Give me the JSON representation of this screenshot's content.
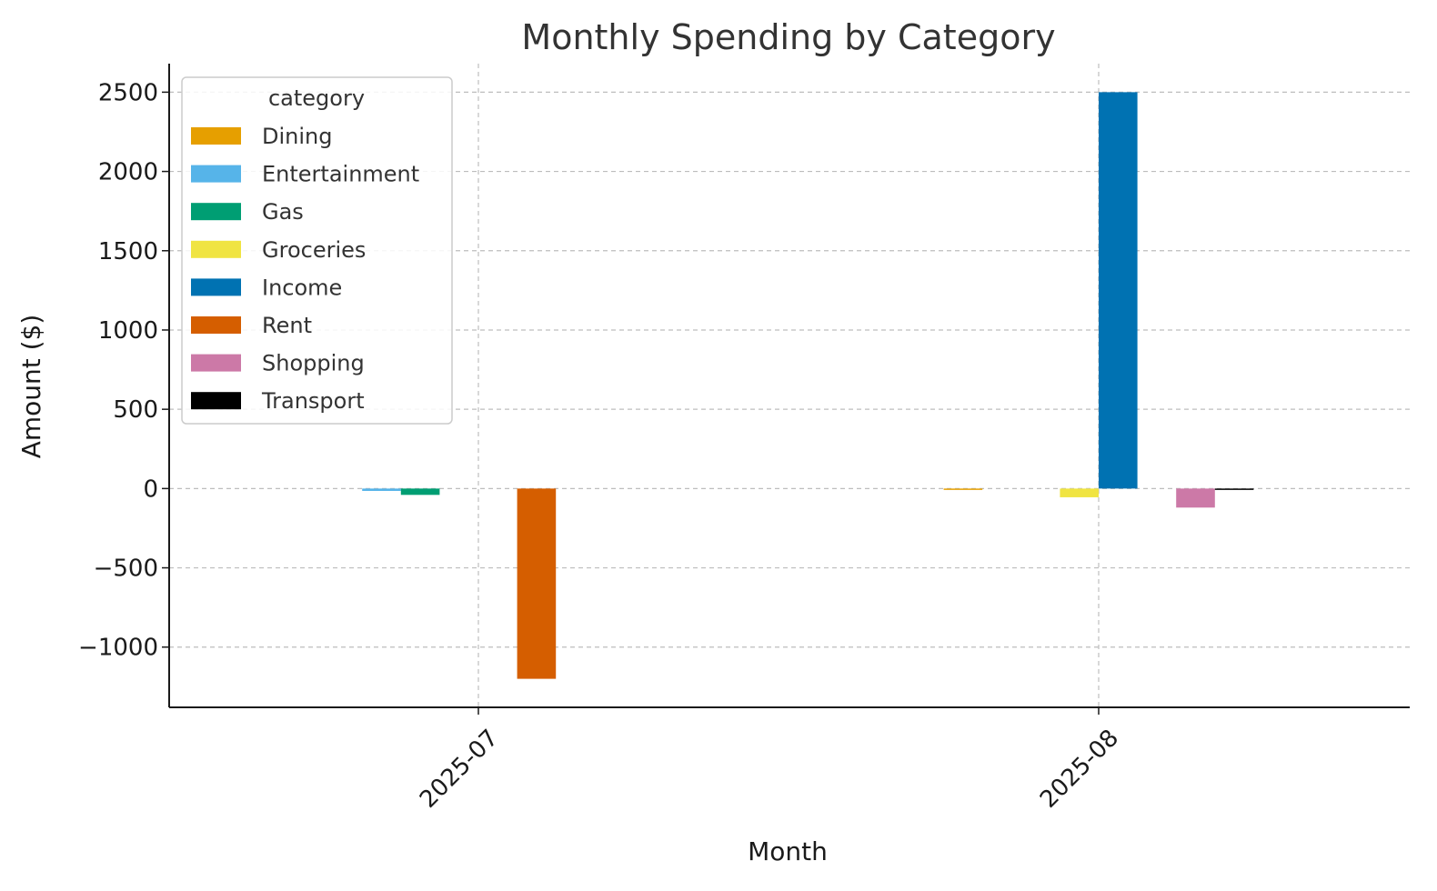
{
  "chart_data": {
    "type": "bar",
    "title": "Monthly Spending by Category",
    "xlabel": "Month",
    "ylabel": "Amount ($)",
    "categories": [
      "2025-07",
      "2025-08"
    ],
    "ylim": [
      -1380,
      2680
    ],
    "yticks": [
      -1000,
      -500,
      0,
      500,
      1000,
      1500,
      2000,
      2500
    ],
    "ytick_labels": [
      "−1000",
      "−500",
      "0",
      "500",
      "1000",
      "1500",
      "2000",
      "2500"
    ],
    "grid": true,
    "legend": {
      "title": "category",
      "placement": "top-left"
    },
    "series": [
      {
        "name": "Dining",
        "color": "#E69F00",
        "values": [
          0,
          -5
        ]
      },
      {
        "name": "Entertainment",
        "color": "#56B4E9",
        "values": [
          -15,
          0
        ]
      },
      {
        "name": "Gas",
        "color": "#009E73",
        "values": [
          -40,
          0
        ]
      },
      {
        "name": "Groceries",
        "color": "#F0E442",
        "values": [
          0,
          -55
        ]
      },
      {
        "name": "Income",
        "color": "#0072B2",
        "values": [
          0,
          2500
        ]
      },
      {
        "name": "Rent",
        "color": "#D55E00",
        "values": [
          -1200,
          0
        ]
      },
      {
        "name": "Shopping",
        "color": "#CC79A7",
        "values": [
          0,
          -120
        ]
      },
      {
        "name": "Transport",
        "color": "#000000",
        "values": [
          0,
          -8
        ]
      }
    ]
  }
}
